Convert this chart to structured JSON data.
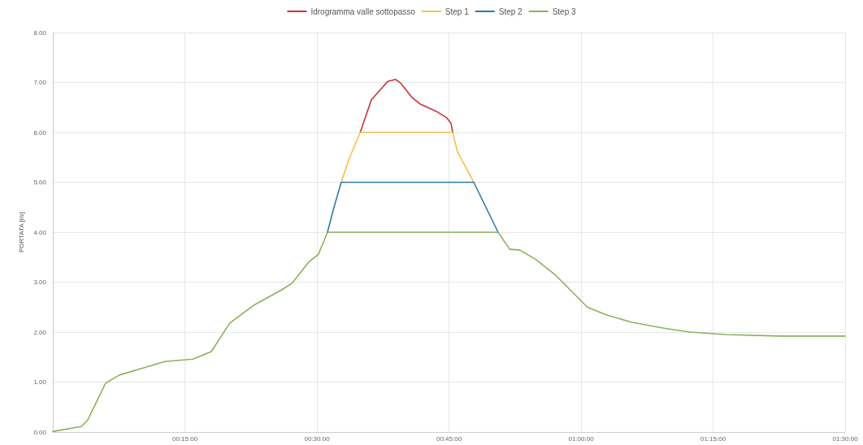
{
  "chart_data": {
    "type": "line",
    "ylabel": "PORTATA [l/s]",
    "legend": "top",
    "grid": true,
    "marker": "none",
    "line_style": "solid",
    "xlim": [
      0,
      1.5
    ],
    "xticks": [
      {
        "value": 0.25,
        "label": "00:15:00"
      },
      {
        "value": 0.5,
        "label": "00:30:00"
      },
      {
        "value": 0.75,
        "label": "00:45:00"
      },
      {
        "value": 1,
        "label": "01:00:00"
      },
      {
        "value": 1.25,
        "label": "01:15:00"
      },
      {
        "value": 1.5,
        "label": "01:30:00"
      }
    ],
    "ylim": [
      0,
      8
    ],
    "yticks": [
      {
        "value": 0,
        "label": "0.00"
      },
      {
        "value": 1,
        "label": "1.00"
      },
      {
        "value": 2,
        "label": "2.00"
      },
      {
        "value": 3,
        "label": "3.00"
      },
      {
        "value": 4,
        "label": "4.00"
      },
      {
        "value": 5,
        "label": "5.00"
      },
      {
        "value": 6,
        "label": "6.00"
      },
      {
        "value": 7,
        "label": "7.00"
      },
      {
        "value": 8,
        "label": "8.00"
      }
    ],
    "x": [
      0,
      0.054,
      0.066,
      0.1,
      0.126,
      0.177,
      0.212,
      0.265,
      0.3,
      0.335,
      0.382,
      0.434,
      0.454,
      0.485,
      0.503,
      0.52,
      0.531,
      0.546,
      0.562,
      0.582,
      0.603,
      0.634,
      0.649,
      0.658,
      0.68,
      0.695,
      0.726,
      0.746,
      0.754,
      0.757,
      0.766,
      0.797,
      0.82,
      0.843,
      0.865,
      0.885,
      0.915,
      0.951,
      1.012,
      1.049,
      1.095,
      1.162,
      1.208,
      1.274,
      1.377,
      1.5
    ],
    "series": [
      {
        "name": "Idrogramma valle sottopasso",
        "color": "#c8323c",
        "values": [
          null,
          null,
          null,
          null,
          null,
          null,
          null,
          null,
          null,
          null,
          null,
          null,
          null,
          null,
          null,
          null,
          null,
          null,
          null,
          6.0,
          6.65,
          7.02,
          7.06,
          6.99,
          6.7,
          6.57,
          6.42,
          6.29,
          6.18,
          6.0,
          null,
          null,
          null,
          null,
          null,
          null,
          null,
          null,
          null,
          null,
          null,
          null,
          null,
          null,
          null,
          null
        ]
      },
      {
        "name": "Step 1",
        "color": "#f2c14e",
        "values": [
          null,
          null,
          null,
          null,
          null,
          null,
          null,
          null,
          null,
          null,
          null,
          null,
          null,
          null,
          null,
          null,
          null,
          5.0,
          5.5,
          6.0,
          6.0,
          6.0,
          6.0,
          6.0,
          6.0,
          6.0,
          6.0,
          6.0,
          6.0,
          6.0,
          5.61,
          5.0,
          null,
          null,
          null,
          null,
          null,
          null,
          null,
          null,
          null,
          null,
          null,
          null,
          null,
          null
        ]
      },
      {
        "name": "Step 2",
        "color": "#2f78a8",
        "values": [
          null,
          null,
          null,
          null,
          null,
          null,
          null,
          null,
          null,
          null,
          null,
          null,
          null,
          null,
          null,
          4.0,
          4.45,
          5.0,
          5.0,
          5.0,
          5.0,
          5.0,
          5.0,
          5.0,
          5.0,
          5.0,
          5.0,
          5.0,
          5.0,
          5.0,
          5.0,
          5.0,
          4.5,
          4.0,
          null,
          null,
          null,
          null,
          null,
          null,
          null,
          null,
          null,
          null,
          null,
          null
        ]
      },
      {
        "name": "Step 3",
        "color": "#8cb05a",
        "values": [
          0.01,
          0.11,
          0.24,
          0.98,
          1.14,
          1.3,
          1.41,
          1.46,
          1.61,
          2.18,
          2.55,
          2.85,
          2.99,
          3.41,
          3.56,
          4.0,
          4.0,
          4.0,
          4.0,
          4.0,
          4.0,
          4.0,
          4.0,
          4.0,
          4.0,
          4.0,
          4.0,
          4.0,
          4.0,
          4.0,
          4.0,
          4.0,
          4.0,
          4.0,
          3.66,
          3.64,
          3.45,
          3.15,
          2.5,
          2.34,
          2.2,
          2.07,
          2.0,
          1.95,
          1.92,
          1.92
        ]
      }
    ]
  }
}
